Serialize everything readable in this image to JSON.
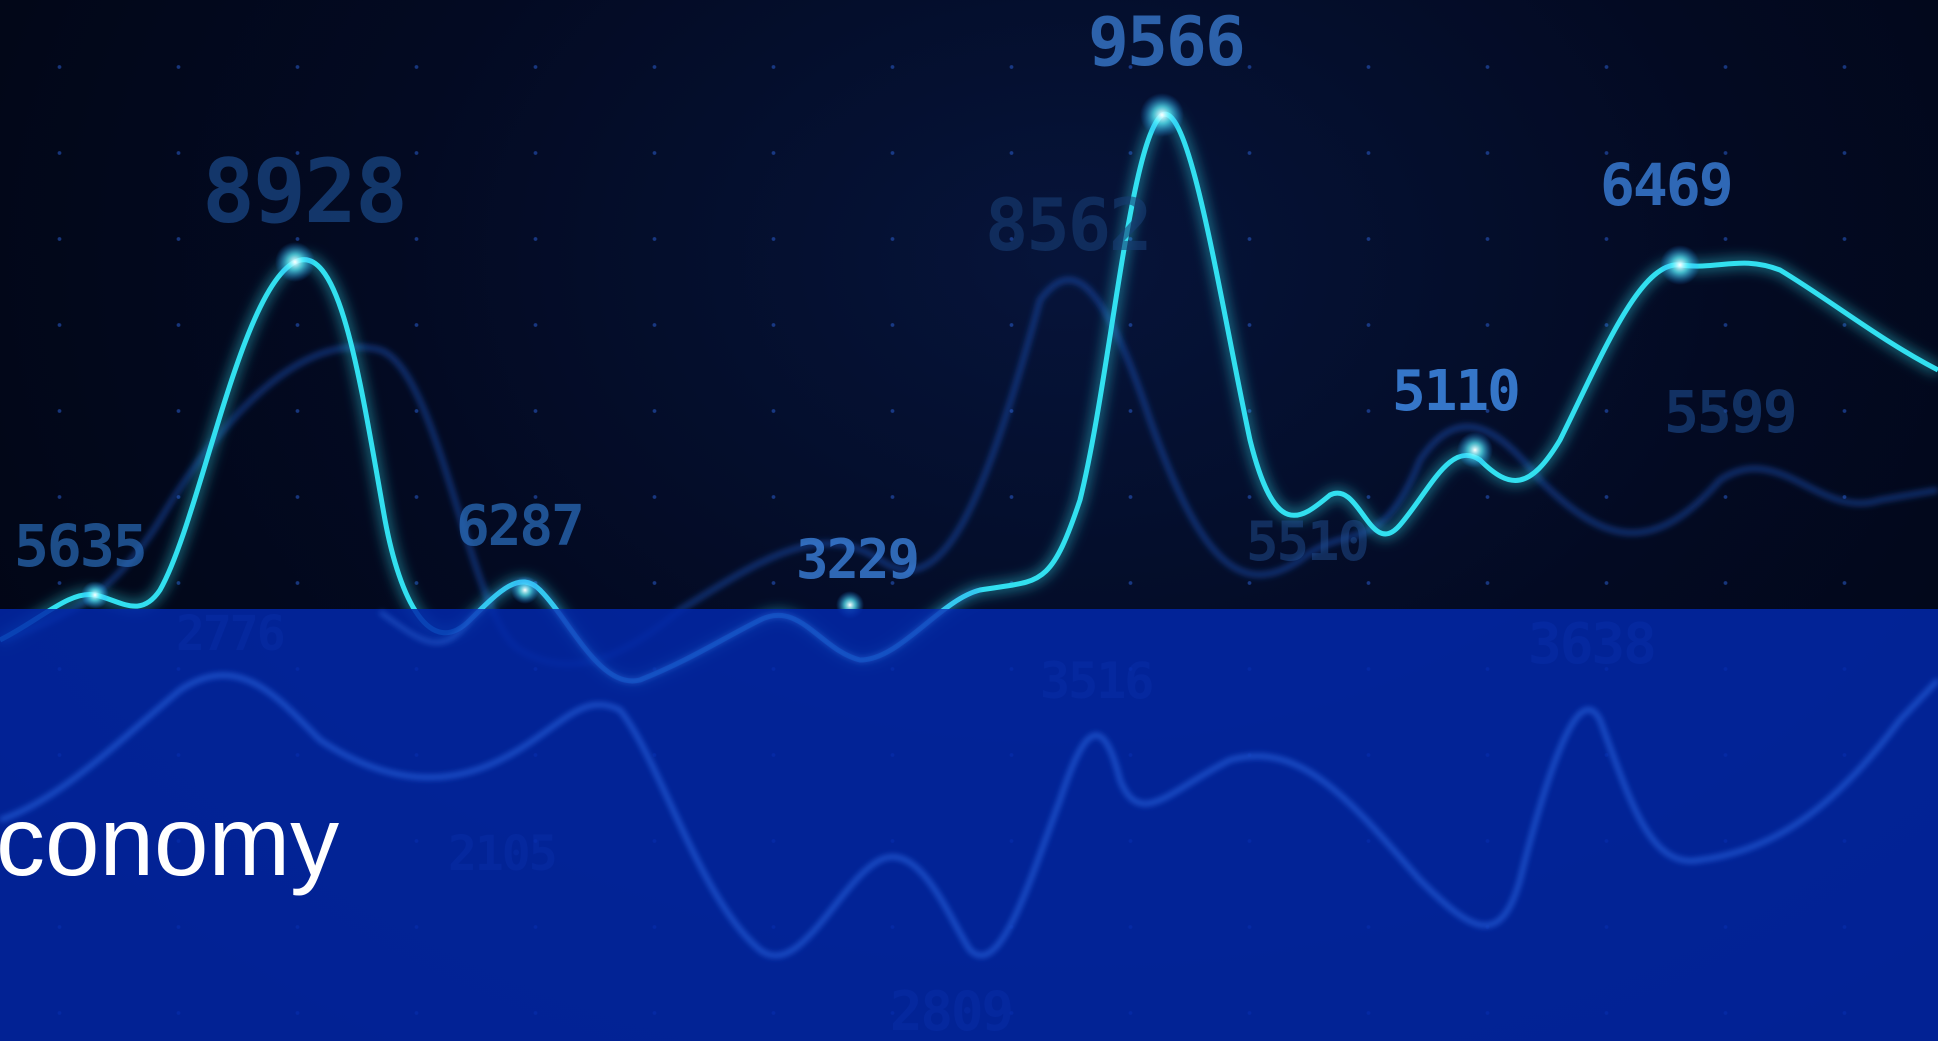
{
  "hero": {
    "title": "conomy",
    "labels": [
      "9566",
      "8928",
      "8562",
      "6469",
      "5110",
      "5599",
      "5635",
      "6287",
      "3229",
      "5510",
      "3638",
      "2776",
      "3516",
      "2105",
      "2809"
    ]
  },
  "colors": {
    "line_primary": "#33e0f0",
    "line_secondary": "#1f6bd8",
    "band": "#0228aa",
    "background": "#020716"
  }
}
